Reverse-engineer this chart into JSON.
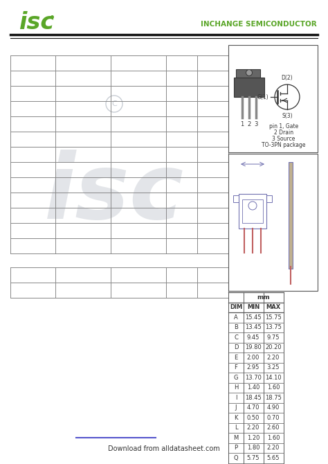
{
  "brand": "isc",
  "brand_color": "#5aa628",
  "subtitle": "INCHANGE SEMICONDUCTOR",
  "subtitle_color": "#5aa628",
  "bg_color": "#ffffff",
  "watermark_color": "#c8cdd4",
  "dim_rows": [
    [
      "A",
      "15.45",
      "15.75"
    ],
    [
      "B",
      "13.45",
      "13.75"
    ],
    [
      "C",
      "9.45",
      "9.75"
    ],
    [
      "D",
      "19.80",
      "20.20"
    ],
    [
      "E",
      "2.00",
      "2.20"
    ],
    [
      "F",
      "2.95",
      "3.25"
    ],
    [
      "G",
      "13.70",
      "14.10"
    ],
    [
      "H",
      "1.40",
      "1.60"
    ],
    [
      "I",
      "18.45",
      "18.75"
    ],
    [
      "J",
      "4.70",
      "4.90"
    ],
    [
      "K",
      "0.50",
      "0.70"
    ],
    [
      "L",
      "2.20",
      "2.60"
    ],
    [
      "M",
      "1.20",
      "1.60"
    ],
    [
      "P",
      "1.80",
      "2.20"
    ],
    [
      "Q",
      "5.75",
      "5.65"
    ]
  ],
  "footer_text": "Download from alldatasheet.com",
  "footer_line_color": "#5555cc",
  "pin_labels": [
    "pin 1, Gate",
    "2 Drain",
    "3 Source",
    "TO-3PN package"
  ]
}
